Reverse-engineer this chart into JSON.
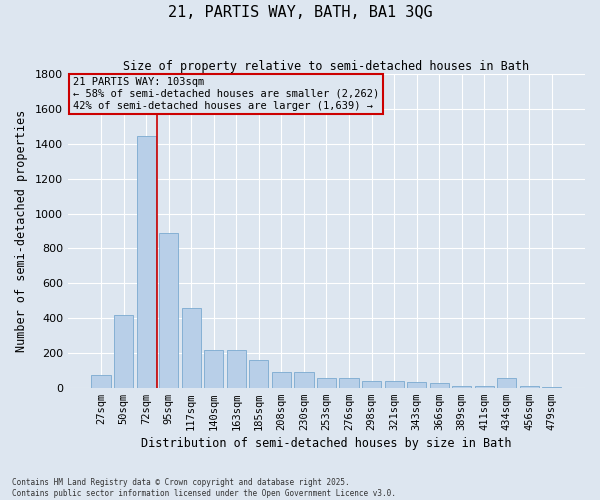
{
  "title": "21, PARTIS WAY, BATH, BA1 3QG",
  "subtitle": "Size of property relative to semi-detached houses in Bath",
  "xlabel": "Distribution of semi-detached houses by size in Bath",
  "ylabel": "Number of semi-detached properties",
  "categories": [
    "27sqm",
    "50sqm",
    "72sqm",
    "95sqm",
    "117sqm",
    "140sqm",
    "163sqm",
    "185sqm",
    "208sqm",
    "230sqm",
    "253sqm",
    "276sqm",
    "298sqm",
    "321sqm",
    "343sqm",
    "366sqm",
    "389sqm",
    "411sqm",
    "434sqm",
    "456sqm",
    "479sqm"
  ],
  "values": [
    75,
    415,
    1445,
    890,
    460,
    215,
    215,
    160,
    90,
    90,
    55,
    55,
    40,
    40,
    35,
    25,
    10,
    10,
    55,
    10,
    5
  ],
  "bar_color": "#b8cfe8",
  "bar_edge_color": "#7aaad0",
  "vline_color": "#cc0000",
  "annotation_title": "21 PARTIS WAY: 103sqm",
  "annotation_line1": "← 58% of semi-detached houses are smaller (2,262)",
  "annotation_line2": "42% of semi-detached houses are larger (1,639) →",
  "annotation_box_color": "#cc0000",
  "ylim": [
    0,
    1800
  ],
  "yticks": [
    0,
    200,
    400,
    600,
    800,
    1000,
    1200,
    1400,
    1600,
    1800
  ],
  "bg_color": "#dde6f0",
  "grid_color": "#ffffff",
  "footer1": "Contains HM Land Registry data © Crown copyright and database right 2025.",
  "footer2": "Contains public sector information licensed under the Open Government Licence v3.0."
}
